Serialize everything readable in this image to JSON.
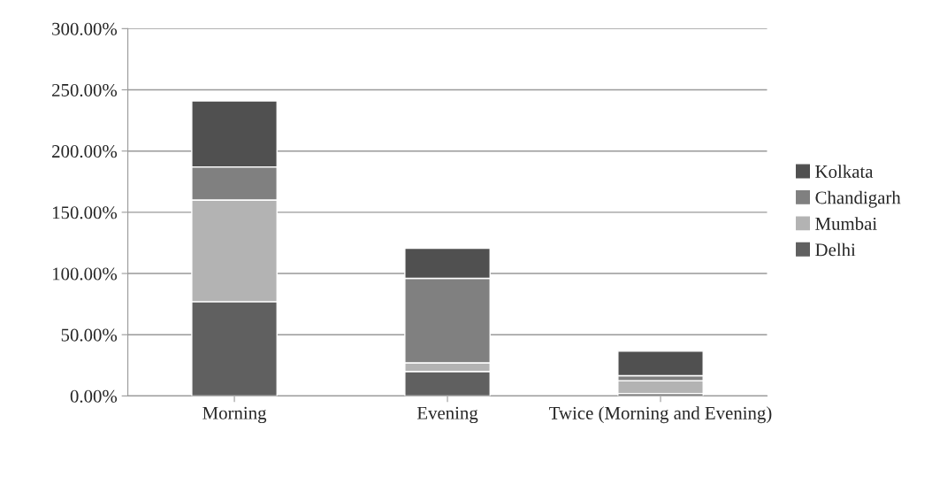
{
  "chart_data": {
    "type": "bar",
    "stacked": true,
    "categories": [
      "Morning",
      "Evening",
      "Twice (Morning and Evening)"
    ],
    "series": [
      {
        "name": "Delhi",
        "color": "#606060",
        "values": [
          77,
          20,
          2
        ]
      },
      {
        "name": "Mumbai",
        "color": "#b3b3b3",
        "values": [
          83,
          7,
          10.5
        ]
      },
      {
        "name": "Chandigarh",
        "color": "#808080",
        "values": [
          27,
          69,
          4
        ]
      },
      {
        "name": "Kolkata",
        "color": "#505050",
        "values": [
          54,
          24.5,
          20
        ]
      }
    ],
    "ylim": [
      0,
      300
    ],
    "yticks": [
      {
        "value": 0,
        "label": "0.00%"
      },
      {
        "value": 50,
        "label": "50.00%"
      },
      {
        "value": 100,
        "label": "100.00%"
      },
      {
        "value": 150,
        "label": "150.00%"
      },
      {
        "value": 200,
        "label": "200.00%"
      },
      {
        "value": 250,
        "label": "250.00%"
      },
      {
        "value": 300,
        "label": "300.00%"
      }
    ],
    "grid": "y",
    "legend": "right"
  }
}
